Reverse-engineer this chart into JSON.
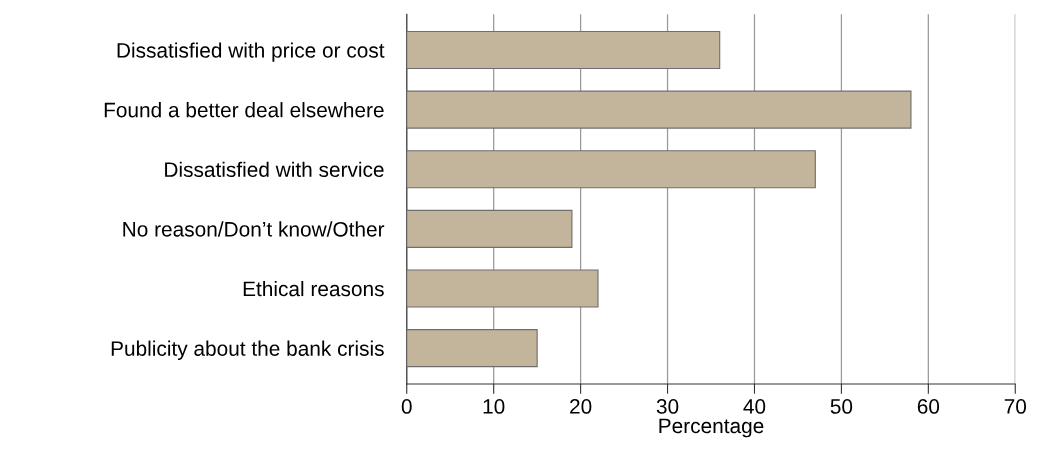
{
  "chart_data": {
    "type": "bar",
    "orientation": "horizontal",
    "xlabel": "Percentage",
    "categories": [
      "Dissatisfied with price or cost",
      "Found a better deal elsewhere",
      "Dissatisfied with service",
      "No reason/Don’t know/Other",
      "Ethical reasons",
      "Publicity about the bank crisis"
    ],
    "values": [
      36,
      58,
      47,
      19,
      22,
      15
    ],
    "color": "#c2b59b",
    "xlim": [
      0,
      70
    ],
    "xticks": [
      0,
      10,
      20,
      30,
      40,
      50,
      60,
      70
    ],
    "grid": "x"
  }
}
